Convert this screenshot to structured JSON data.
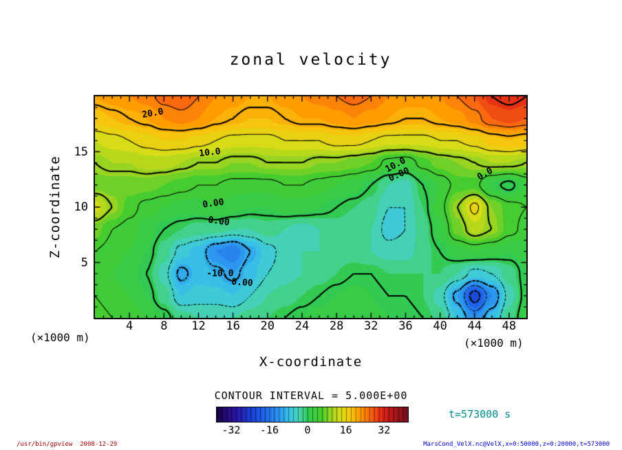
{
  "title": "zonal velocity",
  "axes": {
    "x": {
      "label": "X-coordinate",
      "unit": "(×1000 m)",
      "ticks": [
        4,
        8,
        12,
        16,
        20,
        24,
        28,
        32,
        36,
        40,
        44,
        48
      ],
      "range": [
        0,
        50
      ]
    },
    "z": {
      "label": "Z-coordinate",
      "unit": "(×1000 m)",
      "ticks": [
        5,
        10,
        15
      ],
      "range": [
        0,
        20
      ]
    }
  },
  "contour_interval_label": "CONTOUR INTERVAL = 5.000E+00",
  "time_label": "t=573000 s",
  "footer": {
    "left": "/usr/bin/gpview  2008-12-29",
    "right": "MarsCond_VelX.nc@VelX,x=0:50000,z=0:20000,t=573000"
  },
  "colors": {
    "time_label": "#008b8b",
    "footer_left": "#a00000",
    "footer_right": "#0000cc",
    "frame": "#000000",
    "background": "#ffffff"
  },
  "chart_data": {
    "type": "heatmap",
    "subtype": "filled_contour",
    "title": "zonal velocity",
    "xlabel": "X-coordinate",
    "ylabel": "Z-coordinate",
    "unit_note": "(×1000 m)",
    "x_range": [
      0,
      50
    ],
    "z_range": [
      0,
      20
    ],
    "x": [
      0,
      2,
      4,
      6,
      8,
      10,
      12,
      14,
      16,
      18,
      20,
      22,
      24,
      26,
      28,
      30,
      32,
      34,
      36,
      38,
      40,
      42,
      44,
      46,
      48,
      50
    ],
    "z_rows": [
      20,
      18,
      16,
      14,
      12,
      10,
      8,
      6,
      4,
      2,
      0
    ],
    "values": [
      [
        21,
        22,
        23,
        24,
        26,
        27,
        25,
        23,
        22,
        21,
        21,
        22,
        23,
        24,
        25,
        26,
        25,
        23,
        22,
        22,
        23,
        25,
        27,
        30,
        31,
        30
      ],
      [
        18,
        19,
        20,
        21,
        23,
        24,
        23,
        21,
        20,
        19,
        19,
        20,
        21,
        21,
        22,
        23,
        22,
        21,
        20,
        20,
        21,
        22,
        24,
        27,
        28,
        27
      ],
      [
        13,
        14,
        15,
        16,
        17,
        17,
        16,
        15,
        14,
        14,
        14,
        15,
        15,
        15,
        16,
        16,
        15,
        14,
        14,
        14,
        15,
        15,
        16,
        18,
        19,
        18
      ],
      [
        10,
        11,
        11,
        12,
        12,
        11,
        10,
        10,
        9,
        9,
        10,
        10,
        10,
        9,
        9,
        8,
        7,
        4,
        3,
        6,
        8,
        9,
        10,
        11,
        11,
        10
      ],
      [
        8,
        8,
        8,
        8,
        7,
        6,
        5,
        5,
        4,
        4,
        4,
        5,
        5,
        4,
        3,
        2,
        0,
        -3,
        -4,
        0,
        3,
        6,
        6,
        1,
        -1,
        3
      ],
      [
        14,
        10,
        6,
        4,
        3,
        2,
        2,
        3,
        2,
        1,
        1,
        2,
        2,
        1,
        0,
        -1,
        -2,
        -5,
        -5,
        -1,
        4,
        10,
        16,
        9,
        6,
        5
      ],
      [
        8,
        5,
        4,
        2,
        0,
        -1,
        -2,
        -2,
        -3,
        -3,
        -2,
        -3,
        -4,
        -3,
        -2,
        -3,
        -3,
        -6,
        -5,
        -2,
        2,
        8,
        12,
        10,
        6,
        4
      ],
      [
        5,
        4,
        3,
        1,
        -2,
        -6,
        -8,
        -13,
        -15,
        -10,
        -6,
        -4,
        -3,
        -3,
        -2,
        -2,
        -3,
        -4,
        -4,
        -2,
        0,
        2,
        3,
        2,
        1,
        2
      ],
      [
        4,
        3,
        2,
        0,
        -4,
        -11,
        -8,
        -9,
        -11,
        -8,
        -5,
        -4,
        -3,
        -2,
        -1,
        0,
        0,
        -1,
        -1,
        -1,
        -1,
        -3,
        -6,
        -5,
        -2,
        1
      ],
      [
        5,
        4,
        3,
        1,
        -2,
        -7,
        -6,
        -6,
        -7,
        -5,
        -3,
        -2,
        -1,
        0,
        1,
        2,
        1,
        0,
        0,
        -1,
        -4,
        -11,
        -22,
        -13,
        -4,
        1
      ],
      [
        6,
        5,
        4,
        3,
        1,
        -2,
        -3,
        -3,
        -3,
        -2,
        -1,
        0,
        1,
        2,
        3,
        3,
        2,
        1,
        1,
        0,
        -2,
        -7,
        -13,
        -8,
        -2,
        2
      ]
    ],
    "contour_interval": 5,
    "levels": [
      -25,
      -20,
      -15,
      -10,
      -5,
      0,
      5,
      10,
      15,
      20,
      25,
      30
    ],
    "negative_style": "dashed",
    "fill_quantize": 2,
    "colormap_stops": [
      [
        -38,
        "#1a0040"
      ],
      [
        -30,
        "#2a14a0"
      ],
      [
        -24,
        "#1c3cd0"
      ],
      [
        -18,
        "#1e64e8"
      ],
      [
        -12,
        "#2c96f0"
      ],
      [
        -7,
        "#3cc8e4"
      ],
      [
        -3,
        "#48d4a8"
      ],
      [
        0,
        "#32ca52"
      ],
      [
        6,
        "#46cc2e"
      ],
      [
        10,
        "#9ad422"
      ],
      [
        14,
        "#d8dc16"
      ],
      [
        18,
        "#f6c60e"
      ],
      [
        22,
        "#ff9c00"
      ],
      [
        26,
        "#fa6810"
      ],
      [
        30,
        "#e63214"
      ],
      [
        34,
        "#c01818"
      ],
      [
        42,
        "#701020"
      ]
    ],
    "colorbar": {
      "min": -38,
      "max": 42,
      "ticks": [
        -32,
        -16,
        0,
        16,
        32
      ]
    },
    "contour_labels": [
      {
        "text": "20.0",
        "x": 13.4,
        "y": 7.8,
        "rot": -10
      },
      {
        "text": "10.0",
        "x": 26.6,
        "y": 25.5,
        "rot": -6
      },
      {
        "text": "10.0",
        "x": 69.7,
        "y": 31.1,
        "rot": -28
      },
      {
        "text": "0.00",
        "x": 70.5,
        "y": 35.5,
        "rot": -24
      },
      {
        "text": "0.0",
        "x": 90.4,
        "y": 35.1,
        "rot": -30
      },
      {
        "text": "0.00",
        "x": 27.4,
        "y": 48.4,
        "rot": -8
      },
      {
        "text": "0.00",
        "x": 28.7,
        "y": 56.5,
        "rot": 8
      },
      {
        "text": "-10.0",
        "x": 29.0,
        "y": 80.1,
        "rot": 0
      },
      {
        "text": "0.00",
        "x": 34.1,
        "y": 84.2,
        "rot": 4
      }
    ]
  }
}
